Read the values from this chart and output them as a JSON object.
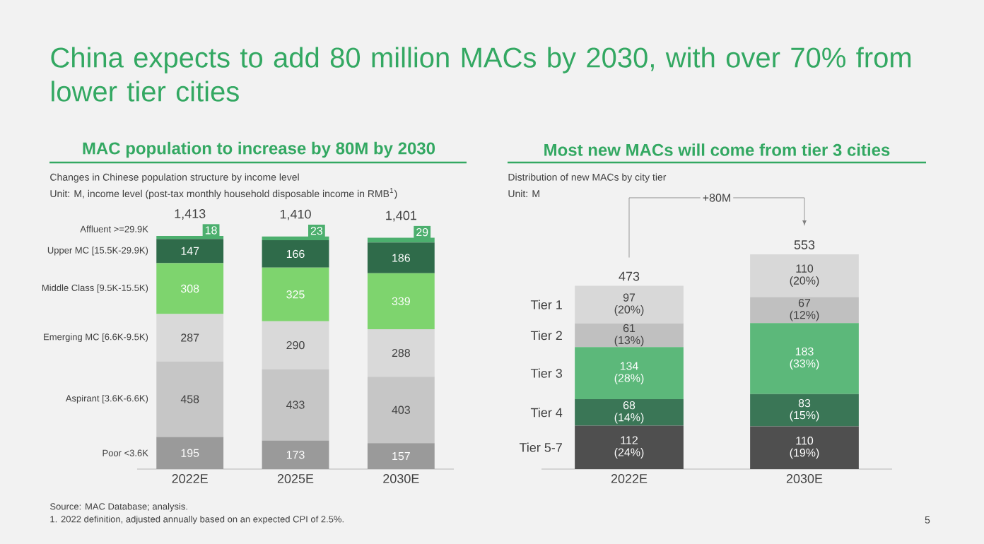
{
  "chart_data": [
    {
      "type": "bar",
      "title": "MAC population to increase by 80M by 2030",
      "subtitle": "Changes in Chinese population structure by income level",
      "categories": [
        "2022E",
        "2025E",
        "2030E"
      ],
      "stacked": true,
      "data_labels": true,
      "tick_labels": "x",
      "totals": [
        "1,413",
        "1,410",
        "1,401"
      ],
      "series": [
        {
          "name": "Poor <3.6K",
          "color": "#9a9a9a",
          "values": [
            195,
            173,
            157
          ]
        },
        {
          "name": "Aspirant [3.6K-6.6K)",
          "color": "#c6c6c6",
          "values": [
            458,
            433,
            403
          ]
        },
        {
          "name": "Emerging MC [6.6K-9.5K)",
          "color": "#d9d9d9",
          "values": [
            287,
            290,
            288
          ]
        },
        {
          "name": "Middle Class [9.5K-15.5K)",
          "color": "#7ed46e",
          "values": [
            308,
            325,
            339
          ]
        },
        {
          "name": "Upper MC [15.5K-29.9K)",
          "color": "#2f6b4a",
          "values": [
            147,
            166,
            186
          ]
        },
        {
          "name": "Affluent >=29.9K",
          "color": "#4caf6e",
          "values": [
            18,
            23,
            29
          ]
        }
      ],
      "annotations": [
        "China expects to add 80 million MACs by 2030, with over 70% from lower tier cities",
        "Unit: M, income level (post-tax monthly household disposable income in RMB$^{1}$)",
        "Source: MAC Database; analysis.",
        "1. 2022 definition, adjusted annually based on an expected CPI of 2.5%.",
        "5"
      ]
    },
    {
      "type": "bar",
      "title": "Most new MACs will come from tier 3 cities",
      "subtitle": "Distribution of new MACs by city tier",
      "categories": [
        "2022E",
        "2030E"
      ],
      "stacked": true,
      "tick_labels": "x",
      "totals": [
        "473",
        "553"
      ],
      "series": [
        {
          "name": "Tier 5-7",
          "color": "#4f4f4f",
          "values": [
            112,
            110
          ],
          "value_labels": [
            "112 (24%)",
            "110 (19%)"
          ]
        },
        {
          "name": "Tier 4",
          "color": "#3a7656",
          "values": [
            68,
            83
          ],
          "value_labels": [
            "68 (14%)",
            "83 (15%)"
          ]
        },
        {
          "name": "Tier 3",
          "color": "#5cb87a",
          "values": [
            134,
            183
          ],
          "value_labels": [
            "134 (28%)",
            "183 (33%)"
          ]
        },
        {
          "name": "Tier 2",
          "color": "#c0c0c0",
          "values": [
            61,
            67
          ],
          "value_labels": [
            "61 (13%)",
            "67 (12%)"
          ]
        },
        {
          "name": "Tier 1",
          "color": "#d8d8d8",
          "values": [
            97,
            110
          ],
          "value_labels": [
            "97 (20%)",
            "110 (20%)"
          ]
        }
      ],
      "annotations": [
        "Unit: M",
        "+80M"
      ]
    }
  ]
}
